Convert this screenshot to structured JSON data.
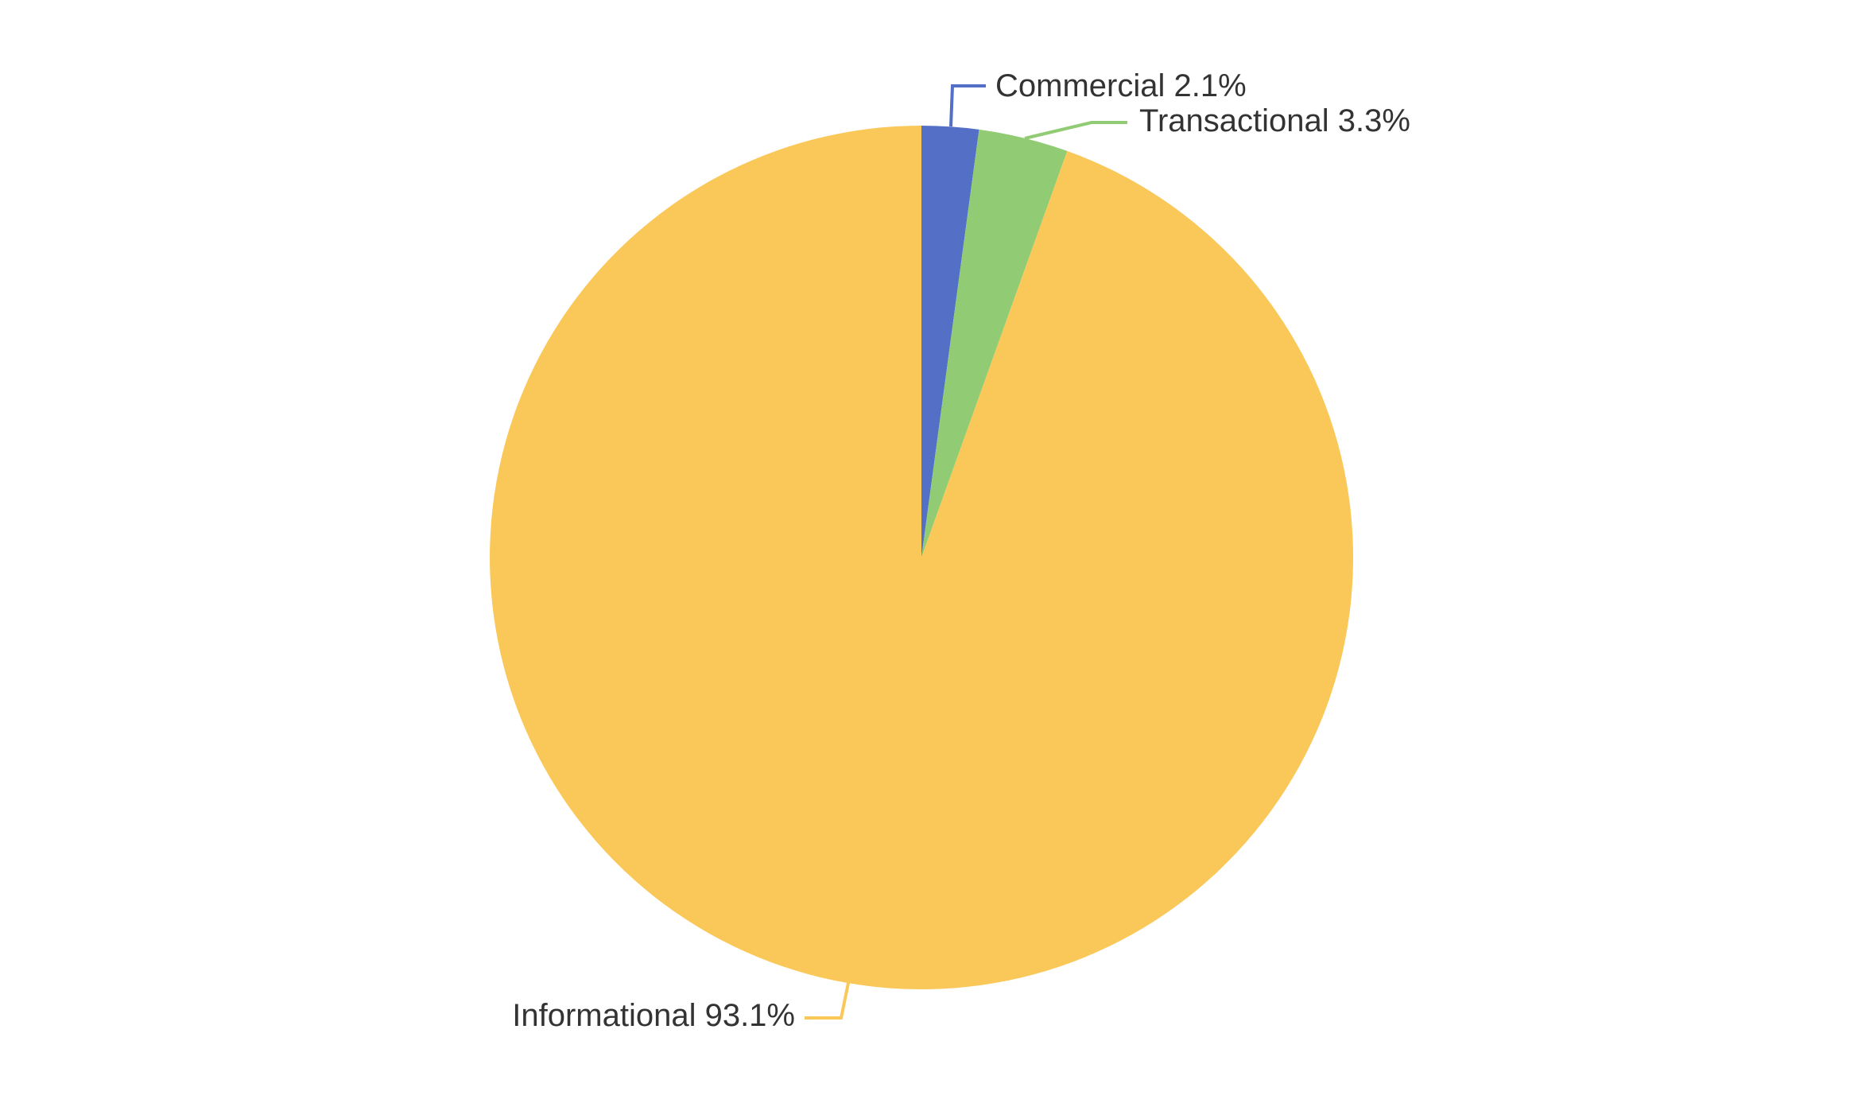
{
  "chart_data": {
    "type": "pie",
    "legend_position": "none",
    "grid": "off",
    "background_color": "#FFFFFF",
    "label_text_color": "#333333",
    "start_angle": "12-oclock",
    "direction": "clockwise",
    "slices": [
      {
        "name": "Commercial",
        "value_pct": 2.1,
        "label": "Commercial 2.1%",
        "color": "#5470C6"
      },
      {
        "name": "Transactional",
        "value_pct": 3.3,
        "label": "Transactional 3.3%",
        "color": "#91CC75"
      },
      {
        "name": "Informational",
        "value_pct": 93.1,
        "label": "Informational 93.1%",
        "color": "#FAC858"
      }
    ]
  }
}
